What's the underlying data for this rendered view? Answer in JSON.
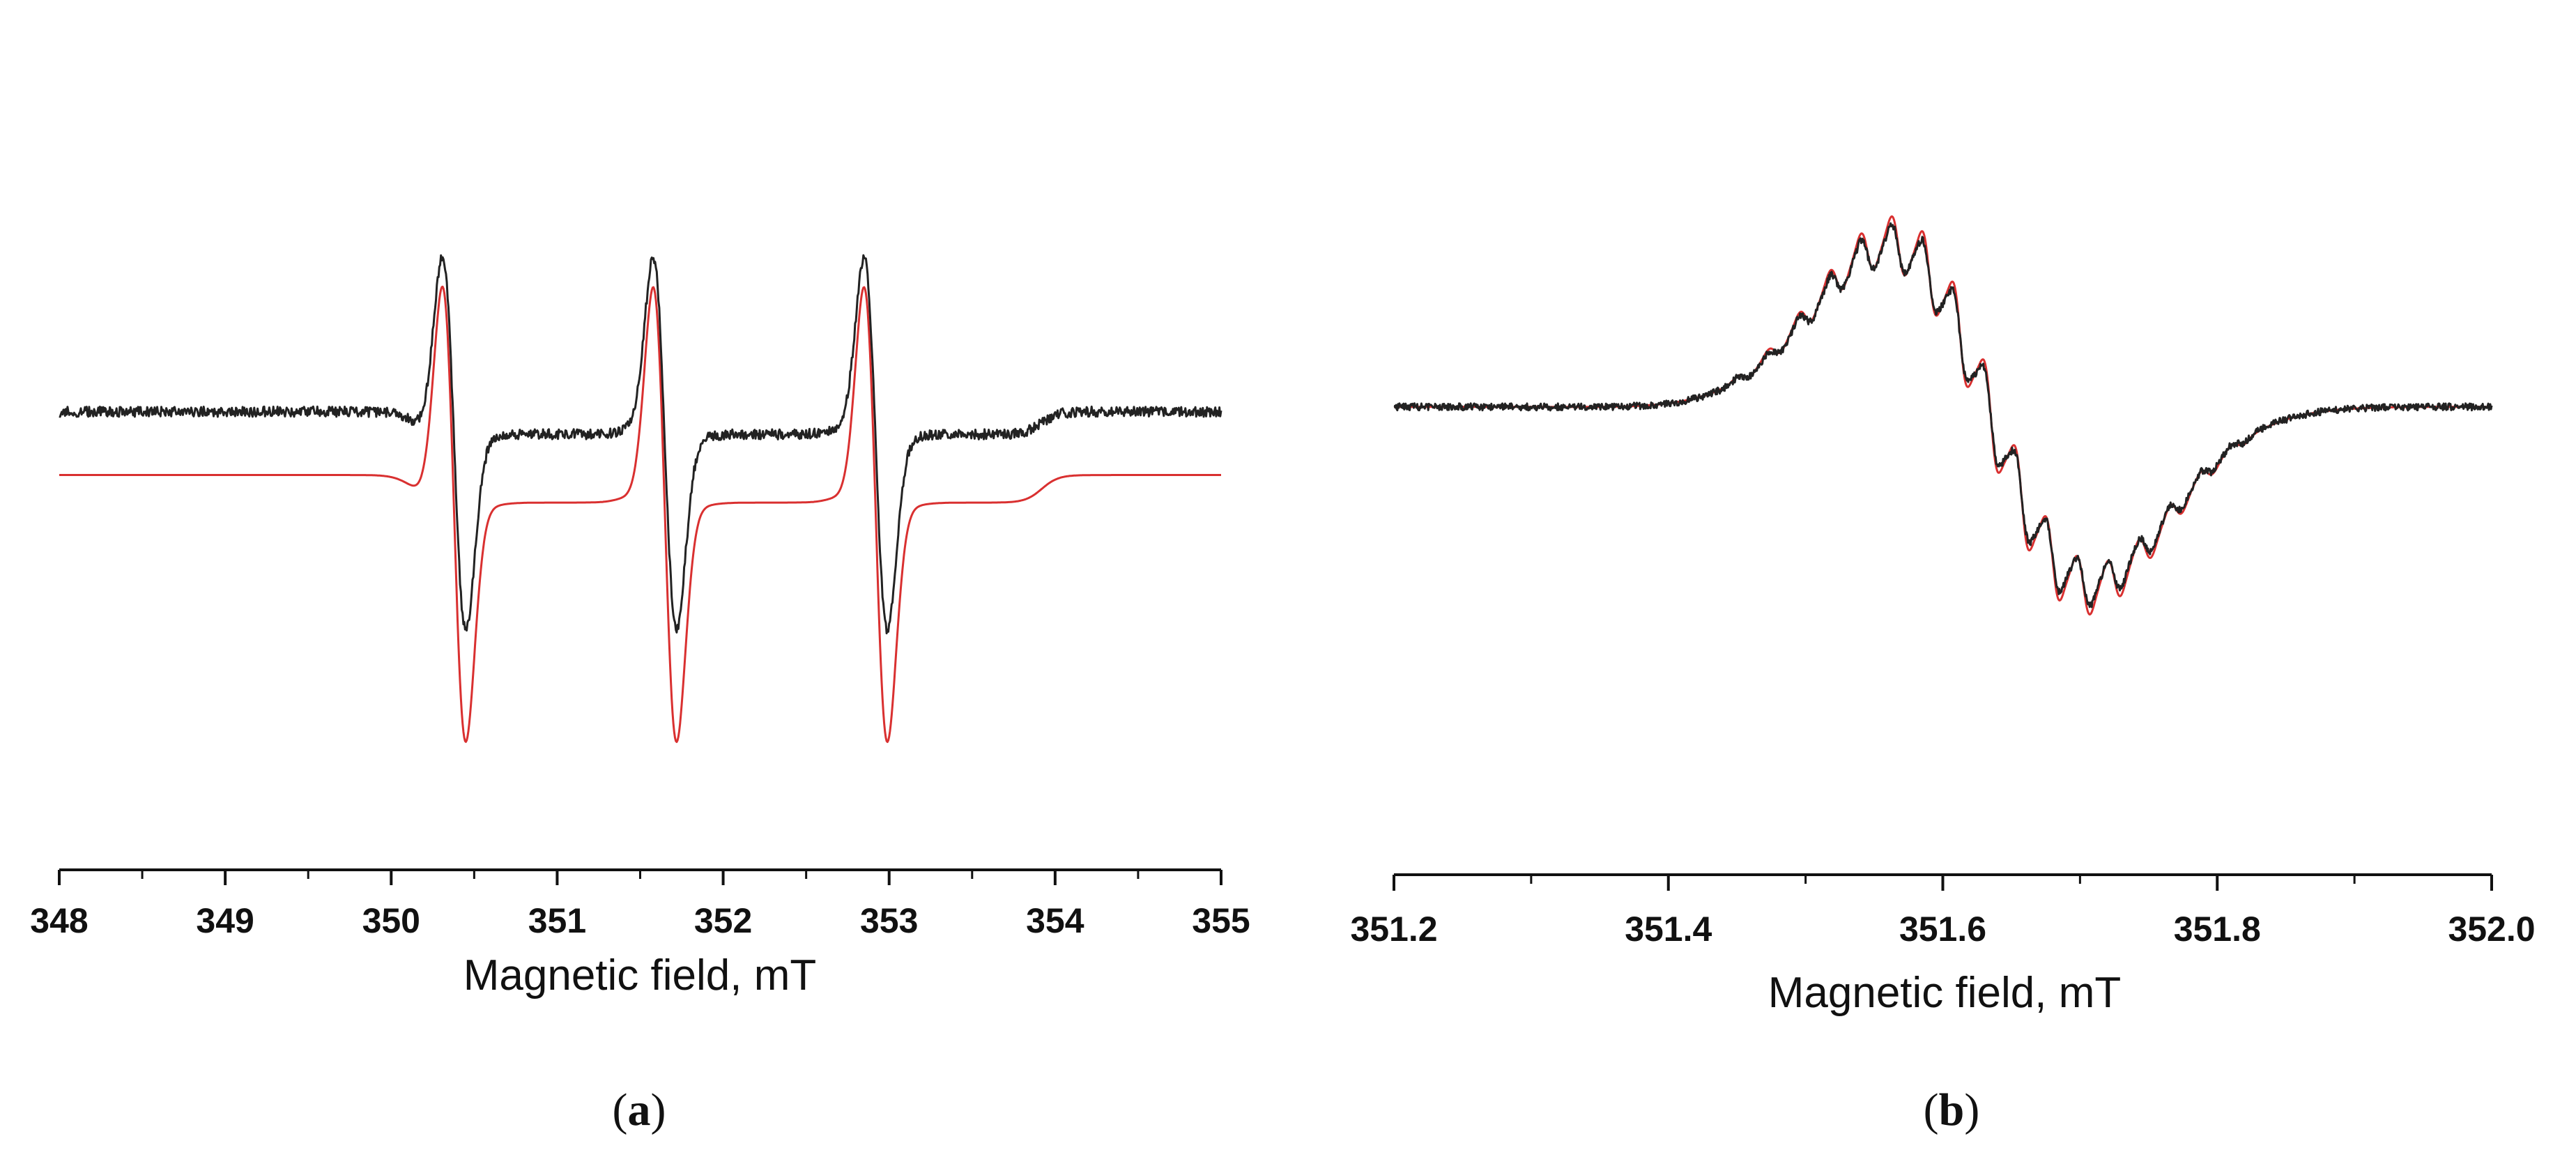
{
  "chart_data": [
    {
      "panel": "a",
      "panel_label": "a",
      "type": "line",
      "xlabel": "Magnetic field, mT",
      "ylabel": "",
      "xlim": [
        348,
        355
      ],
      "ylim": [
        -1.6,
        1.45
      ],
      "x_ticks": [
        348,
        349,
        350,
        351,
        352,
        353,
        354,
        355
      ],
      "x_tick_labels": [
        "348",
        "349",
        "350",
        "351",
        "352",
        "353",
        "354",
        "355"
      ],
      "grid": false,
      "legend": "none",
      "line_centers_mT": [
        350.38,
        351.65,
        352.92
      ],
      "series": [
        {
          "color": "#222222",
          "baseline": 0.0,
          "peak_max": 1.3,
          "trough_min": -1.2,
          "noise": true
        },
        {
          "color": "#d93030",
          "baseline": -0.28,
          "peak_max": 0.95,
          "trough_min": -1.5,
          "noise": false
        }
      ]
    },
    {
      "panel": "b",
      "panel_label": "b",
      "type": "line",
      "xlabel": "Magnetic field, mT",
      "ylabel": "",
      "xlim": [
        351.2,
        352.0
      ],
      "ylim": [
        -1.6,
        1.4
      ],
      "x_ticks": [
        351.2,
        351.4,
        351.6,
        351.8,
        352.0
      ],
      "x_tick_labels": [
        "351.2",
        "351.4",
        "351.6",
        "351.8",
        "352.0"
      ],
      "grid": false,
      "legend": "none",
      "hyperfine_spacing_mT": 0.0225,
      "series": [
        {
          "color": "#222222",
          "noise": true
        },
        {
          "color": "#d93030",
          "noise": false
        }
      ]
    }
  ]
}
